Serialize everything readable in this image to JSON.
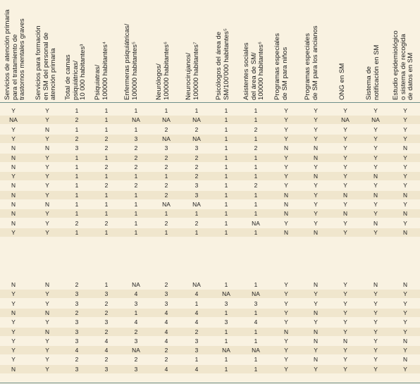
{
  "headers": [
    [
      "Servicios de atención primaria",
      "para el tratamiento de",
      "trastornos mentales graves"
    ],
    [
      "Servicios para formación",
      "en SM del personal de",
      "atención primaria"
    ],
    [
      "Total de camas",
      "psiquiátricas/",
      "10 000 habitantes³"
    ],
    [
      "Psiquiatras/",
      "100000 habitantes⁴"
    ],
    [
      "Enfermeras psiquiátricas/",
      "100000 habitantes⁵"
    ],
    [
      "Neurólogos/",
      "100000 habitantes⁶"
    ],
    [
      "Neurocirujanos/",
      "100000 habitantes⁷"
    ],
    [
      "Psicólogos del área de",
      "SM/100'000 habitantes⁵"
    ],
    [
      "Asistentes sociales",
      "del área de SM/",
      "100000 habitantes⁶"
    ],
    [
      "Programas especiales",
      "de SM para niños"
    ],
    [
      "Programas especiales",
      "de SM para los ancianos"
    ],
    [
      "ONG en SM"
    ],
    [
      "Sistema de",
      "notificación en SM"
    ],
    [
      "Estudio epidemiológico",
      "o sistema de recogida",
      "de datos en SM"
    ]
  ],
  "group1": [
    [
      "Y",
      "Y",
      "1",
      "1",
      "1",
      "1",
      "1",
      "1",
      "1",
      "Y",
      "Y",
      "Y",
      "Y",
      "Y"
    ],
    [
      "NA",
      "Y",
      "2",
      "1",
      "NA",
      "NA",
      "NA",
      "1",
      "1",
      "Y",
      "Y",
      "NA",
      "NA",
      "Y"
    ],
    [
      "Y",
      "N",
      "1",
      "1",
      "1",
      "2",
      "2",
      "1",
      "2",
      "Y",
      "Y",
      "Y",
      "Y",
      "Y"
    ],
    [
      "Y",
      "Y",
      "2",
      "2",
      "3",
      "NA",
      "NA",
      "1",
      "1",
      "Y",
      "Y",
      "Y",
      "Y",
      "Y"
    ],
    [
      "N",
      "N",
      "3",
      "2",
      "2",
      "3",
      "3",
      "1",
      "2",
      "N",
      "N",
      "Y",
      "Y",
      "N"
    ],
    [
      "N",
      "Y",
      "1",
      "1",
      "2",
      "2",
      "2",
      "1",
      "1",
      "Y",
      "N",
      "Y",
      "Y",
      "Y"
    ],
    [
      "N",
      "Y",
      "1",
      "2",
      "2",
      "2",
      "2",
      "1",
      "1",
      "Y",
      "Y",
      "Y",
      "Y",
      "Y"
    ],
    [
      "Y",
      "Y",
      "1",
      "1",
      "1",
      "1",
      "2",
      "1",
      "1",
      "Y",
      "N",
      "Y",
      "N",
      "Y"
    ],
    [
      "N",
      "Y",
      "1",
      "2",
      "2",
      "2",
      "3",
      "1",
      "2",
      "Y",
      "Y",
      "Y",
      "Y",
      "Y"
    ],
    [
      "N",
      "Y",
      "1",
      "1",
      "1",
      "2",
      "3",
      "1",
      "1",
      "N",
      "Y",
      "N",
      "N",
      "N"
    ],
    [
      "N",
      "N",
      "1",
      "1",
      "1",
      "NA",
      "NA",
      "1",
      "1",
      "N",
      "Y",
      "Y",
      "Y",
      "Y"
    ],
    [
      "N",
      "Y",
      "1",
      "1",
      "1",
      "1",
      "1",
      "1",
      "1",
      "N",
      "Y",
      "N",
      "Y",
      "N"
    ],
    [
      "N",
      "Y",
      "2",
      "2",
      "1",
      "2",
      "2",
      "1",
      "NA",
      "Y",
      "Y",
      "Y",
      "N",
      "Y"
    ],
    [
      "Y",
      "Y",
      "1",
      "1",
      "1",
      "1",
      "1",
      "1",
      "1",
      "N",
      "N",
      "Y",
      "Y",
      "N"
    ]
  ],
  "group2": [
    [
      "N",
      "N",
      "2",
      "1",
      "NA",
      "2",
      "NA",
      "1",
      "1",
      "Y",
      "N",
      "Y",
      "N",
      "N"
    ],
    [
      "Y",
      "Y",
      "3",
      "3",
      "4",
      "3",
      "4",
      "NA",
      "NA",
      "Y",
      "Y",
      "Y",
      "Y",
      "Y"
    ],
    [
      "Y",
      "Y",
      "3",
      "2",
      "3",
      "3",
      "1",
      "3",
      "3",
      "Y",
      "Y",
      "Y",
      "Y",
      "Y"
    ],
    [
      "N",
      "N",
      "2",
      "2",
      "1",
      "4",
      "4",
      "1",
      "1",
      "Y",
      "N",
      "Y",
      "Y",
      "Y"
    ],
    [
      "Y",
      "Y",
      "3",
      "3",
      "4",
      "4",
      "4",
      "3",
      "4",
      "Y",
      "Y",
      "Y",
      "Y",
      "Y"
    ],
    [
      "Y",
      "N",
      "3",
      "2",
      "2",
      "4",
      "2",
      "1",
      "1",
      "N",
      "N",
      "Y",
      "Y",
      "Y"
    ],
    [
      "Y",
      "Y",
      "3",
      "4",
      "3",
      "4",
      "3",
      "1",
      "1",
      "Y",
      "N",
      "N",
      "Y",
      "N"
    ],
    [
      "Y",
      "Y",
      "4",
      "4",
      "NA",
      "2",
      "3",
      "NA",
      "NA",
      "Y",
      "Y",
      "Y",
      "Y",
      "Y"
    ],
    [
      "Y",
      "Y",
      "2",
      "2",
      "2",
      "2",
      "1",
      "1",
      "1",
      "Y",
      "N",
      "Y",
      "Y",
      "N"
    ],
    [
      "N",
      "Y",
      "3",
      "3",
      "3",
      "4",
      "4",
      "1",
      "1",
      "Y",
      "Y",
      "Y",
      "Y",
      "Y"
    ]
  ]
}
